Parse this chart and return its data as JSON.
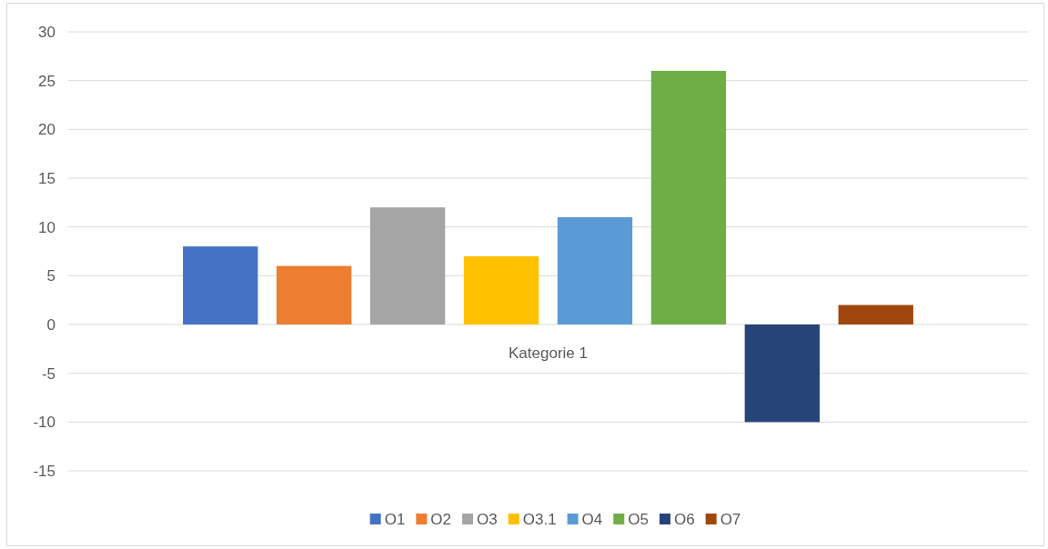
{
  "chart_data": {
    "type": "bar",
    "categories": [
      "Kategorie 1"
    ],
    "series": [
      {
        "name": "O1",
        "color": "#4472c4",
        "values": [
          8
        ]
      },
      {
        "name": "O2",
        "color": "#ed7d31",
        "values": [
          6
        ]
      },
      {
        "name": "O3",
        "color": "#a5a5a5",
        "values": [
          12
        ]
      },
      {
        "name": "O3.1",
        "color": "#ffc000",
        "values": [
          7
        ]
      },
      {
        "name": "O4",
        "color": "#5b9bd5",
        "values": [
          11
        ]
      },
      {
        "name": "O5",
        "color": "#70ad47",
        "values": [
          26
        ]
      },
      {
        "name": "O6",
        "color": "#264478",
        "values": [
          -10
        ]
      },
      {
        "name": "O7",
        "color": "#9e480e",
        "values": [
          2
        ]
      }
    ],
    "ylim": [
      -15,
      30
    ],
    "yticks": [
      -15,
      -10,
      -5,
      0,
      5,
      10,
      15,
      20,
      25,
      30
    ],
    "grid": "y",
    "legend": "bottom"
  }
}
